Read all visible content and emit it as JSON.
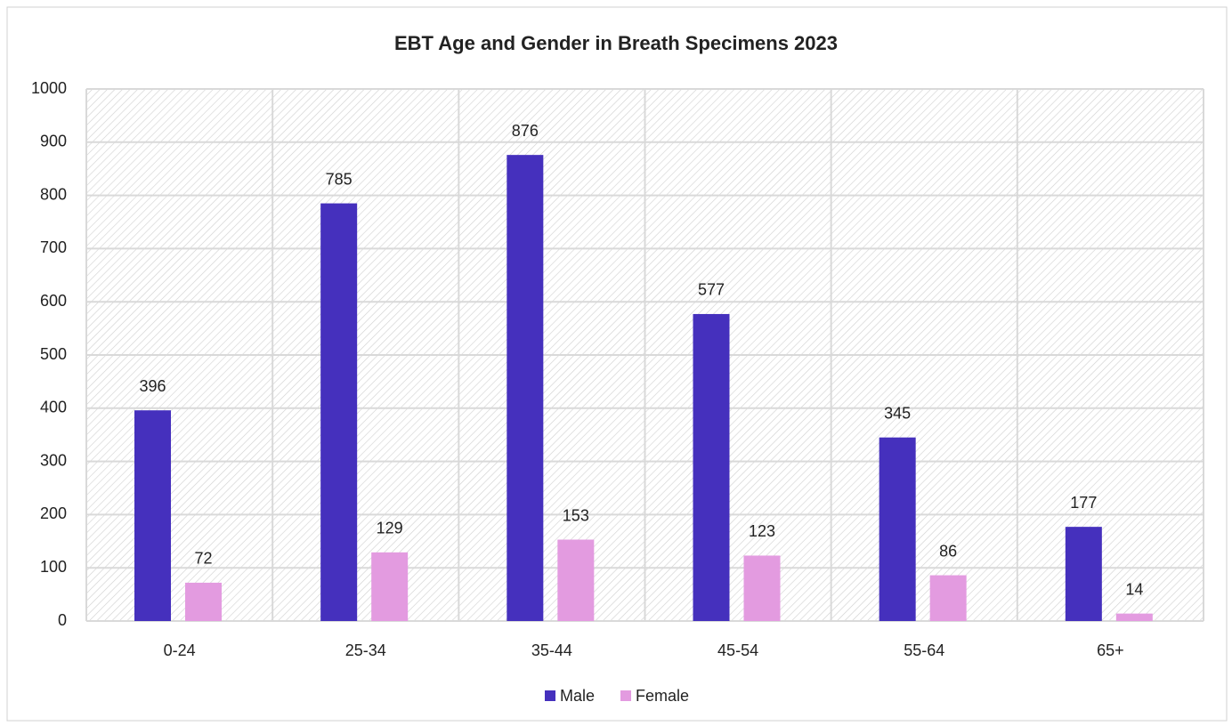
{
  "chart_data": {
    "type": "bar",
    "title": "EBT Age and Gender in Breath Specimens 2023",
    "categories": [
      "0-24",
      "25-34",
      "35-44",
      "45-54",
      "55-64",
      "65+"
    ],
    "series": [
      {
        "name": "Male",
        "color": "#4530bd",
        "values": [
          396,
          785,
          876,
          577,
          345,
          177
        ]
      },
      {
        "name": "Female",
        "color": "#e39be0",
        "values": [
          72,
          129,
          153,
          123,
          86,
          14
        ]
      }
    ],
    "ylim": [
      0,
      1000
    ],
    "yticks": [
      0,
      100,
      200,
      300,
      400,
      500,
      600,
      700,
      800,
      900,
      1000
    ],
    "grid": true,
    "legend": "bottom"
  }
}
